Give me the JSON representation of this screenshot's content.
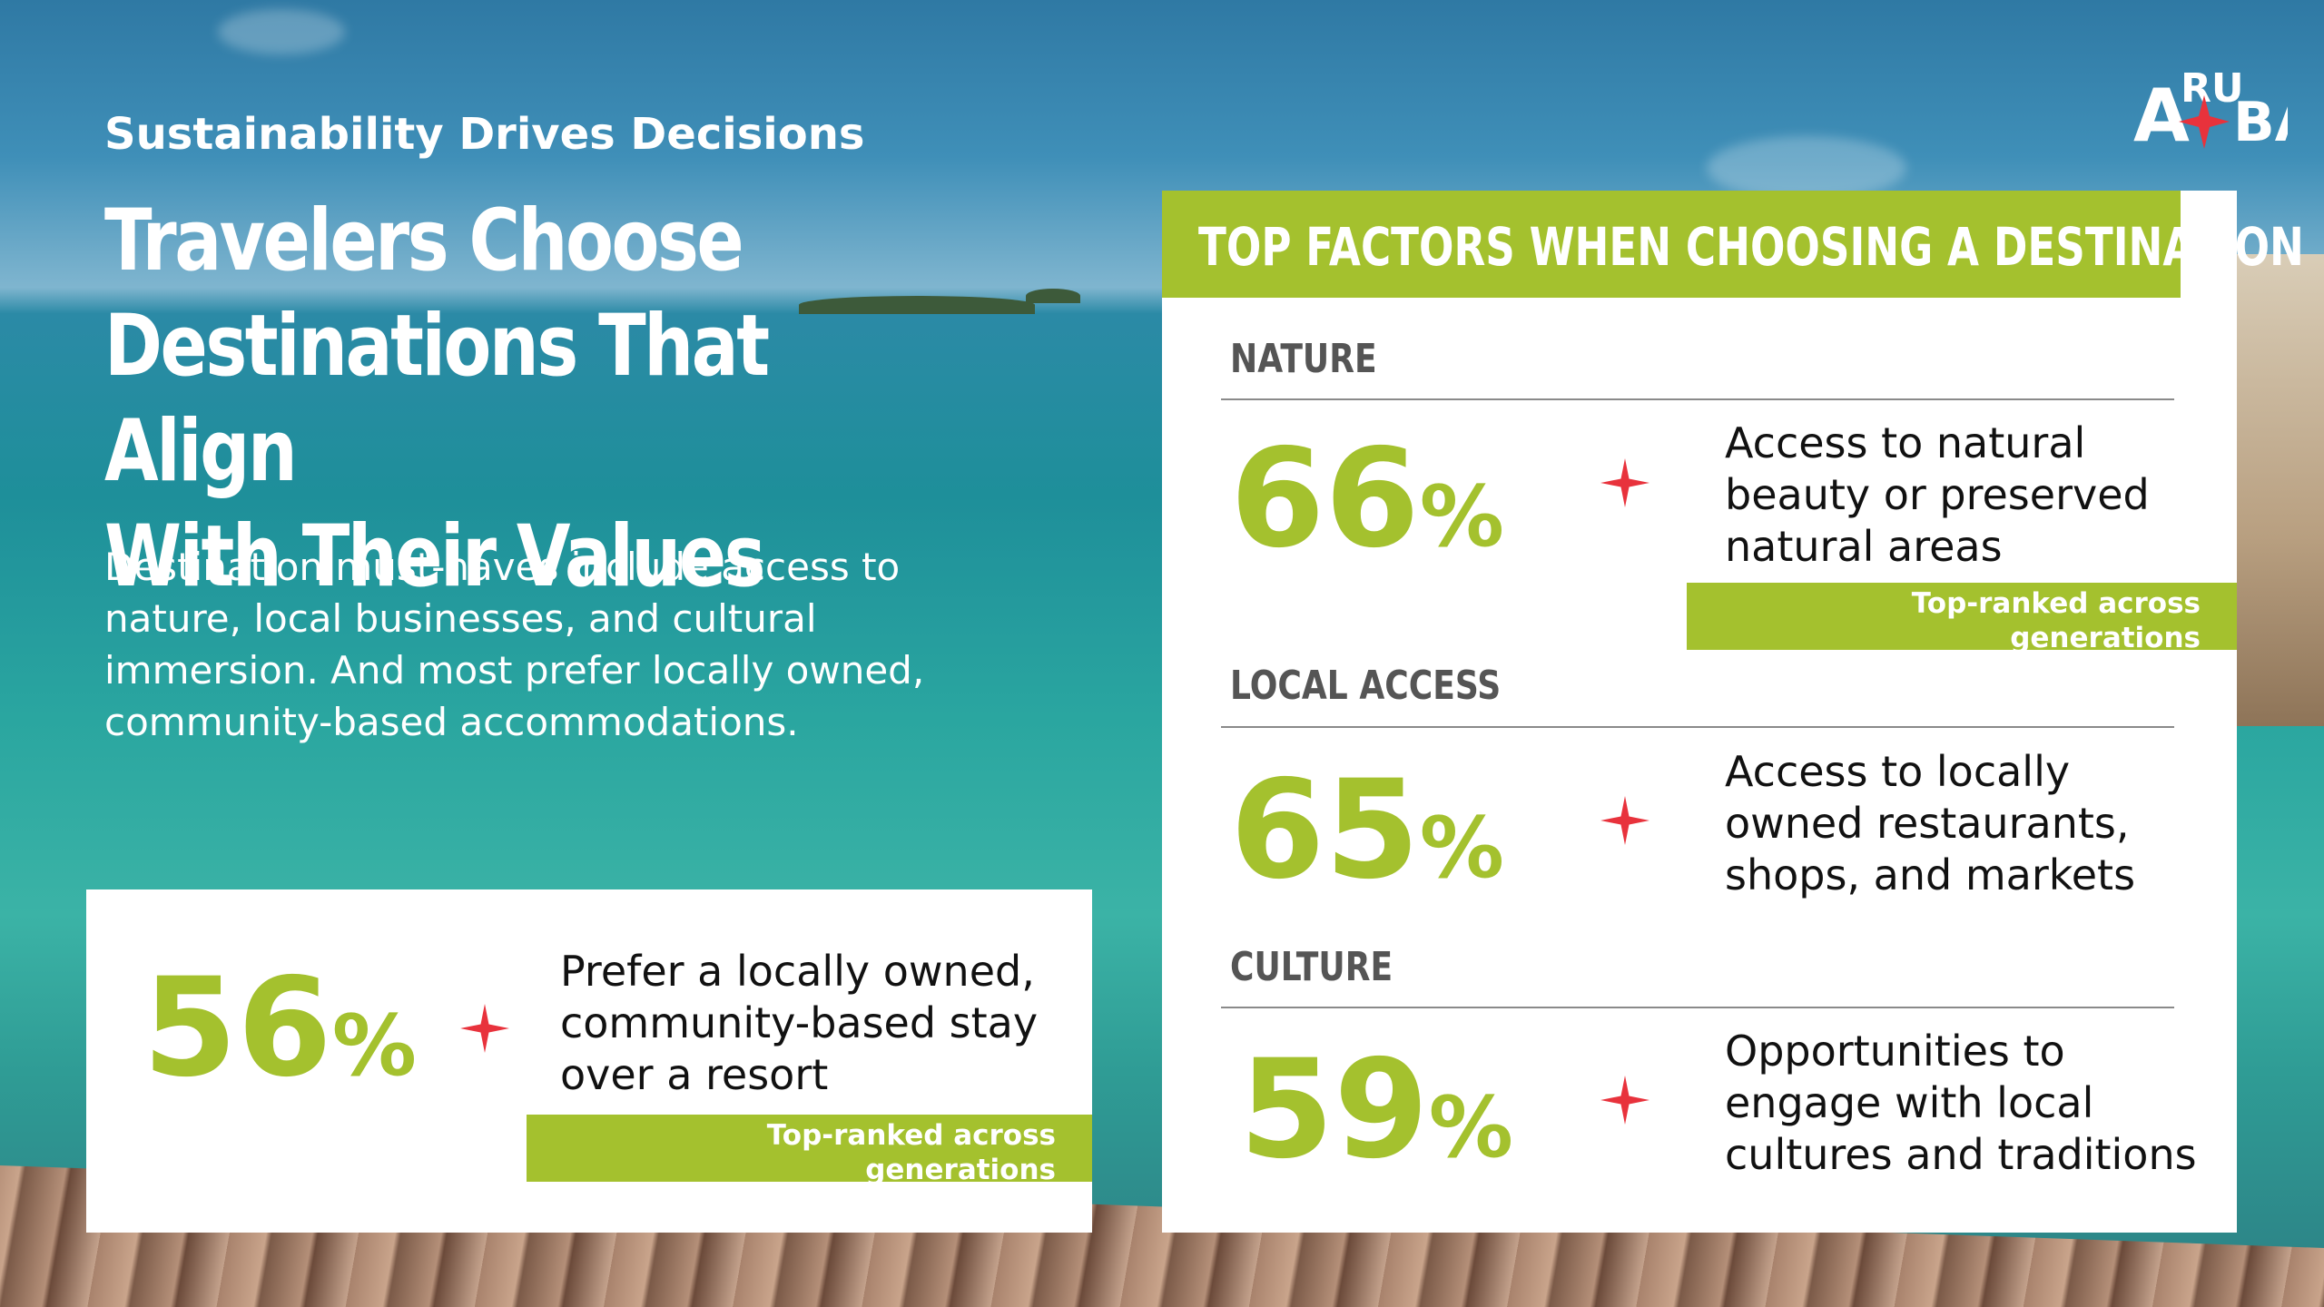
{
  "header": {
    "subtitle": "Sustainability Drives Decisions",
    "title_lines": [
      "Travelers Choose",
      "Destinations That Align",
      "With Their Values"
    ],
    "description": "Destination must-haves include access to nature, local businesses, and cultural immersion. And most prefer locally owned, community-based accommodations."
  },
  "logo": {
    "text": "ARUBA"
  },
  "left_stat": {
    "value": "56",
    "unit": "%",
    "text_lines": [
      "Prefer a locally owned,",
      "community-based stay",
      "over a resort"
    ],
    "ribbon_lines": [
      "Top-ranked across",
      "generations"
    ]
  },
  "panel": {
    "heading": "TOP FACTORS WHEN CHOOSING A DESTINATION",
    "factors": [
      {
        "category": "NATURE",
        "value": "66",
        "unit": "%",
        "text_lines": [
          "Access to natural",
          "beauty or preserved",
          "natural areas"
        ],
        "ribbon_lines": [
          "Top-ranked across",
          "generations"
        ]
      },
      {
        "category": "LOCAL ACCESS",
        "value": "65",
        "unit": "%",
        "text_lines": [
          "Access to locally",
          "owned restaurants,",
          "shops, and markets"
        ]
      },
      {
        "category": "CULTURE",
        "value": "59",
        "unit": "%",
        "text_lines": [
          "Opportunities to",
          "engage with local",
          "cultures and traditions"
        ]
      }
    ]
  },
  "colors": {
    "accent_green": "#a4c12e",
    "star_red": "#e8323c"
  },
  "icons": {
    "star": "four-point-star-icon"
  }
}
